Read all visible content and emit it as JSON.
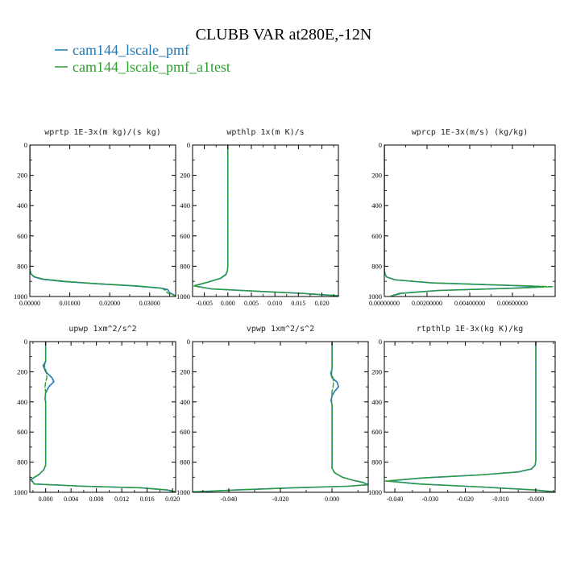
{
  "title": "CLUBB VAR at280E,-12N",
  "legend": [
    {
      "label": "cam144_lscale_pmf",
      "color": "#1f77b4"
    },
    {
      "label": "cam144_lscale_pmf_a1test",
      "color": "#2ca02c"
    }
  ],
  "colors": {
    "series1": "#1f77b4",
    "series2": "#2ca02c"
  },
  "chart_data": [
    {
      "type": "line",
      "title": "wprtp  1E-3x(m kg)/(s kg)",
      "xlim": [
        0,
        0.0365
      ],
      "ylim": [
        1000,
        0
      ],
      "xticks": [
        0,
        0.01,
        0.02,
        0.03
      ],
      "xtick_labels": [
        "0.00000",
        "0.01000",
        "0.02000",
        "0.03000"
      ],
      "yticks": [
        0,
        200,
        400,
        600,
        800,
        1000
      ],
      "ytick_labels": [
        "0",
        "200",
        "400",
        "600",
        "800",
        "1000"
      ],
      "series": [
        {
          "name": "cam144_lscale_pmf",
          "x": [
            0,
            0,
            0.0003,
            0.001,
            0.003,
            0.008,
            0.016,
            0.026,
            0.033,
            0.0345,
            0.035,
            0.0365
          ],
          "y": [
            0,
            820,
            850,
            870,
            885,
            900,
            915,
            930,
            945,
            955,
            975,
            995
          ]
        },
        {
          "name": "cam144_lscale_pmf_a1test",
          "x": [
            0,
            0,
            0.0003,
            0.0012,
            0.0035,
            0.009,
            0.017,
            0.027,
            0.033,
            0.034,
            0.0345,
            0.0365
          ],
          "y": [
            0,
            820,
            850,
            870,
            885,
            900,
            915,
            930,
            945,
            960,
            978,
            995
          ]
        }
      ]
    },
    {
      "type": "line",
      "title": "wpthlp  1x(m K)/s",
      "xlim": [
        -0.0075,
        0.0235
      ],
      "ylim": [
        1000,
        0
      ],
      "xticks": [
        -0.005,
        0,
        0.005,
        0.01,
        0.015,
        0.02
      ],
      "xtick_labels": [
        "-0.005",
        "0.000",
        "0.005",
        "0.010",
        "0.015",
        "0.020"
      ],
      "yticks": [
        0,
        200,
        400,
        600,
        800,
        1000
      ],
      "ytick_labels": [
        "0",
        "200",
        "400",
        "600",
        "800",
        "1000"
      ],
      "series": [
        {
          "name": "cam144_lscale_pmf",
          "x": [
            0,
            0,
            -0.0001,
            -0.0004,
            -0.0015,
            -0.0042,
            -0.0072,
            -0.0035,
            0.006,
            0.016,
            0.0235
          ],
          "y": [
            0,
            800,
            830,
            855,
            880,
            905,
            930,
            950,
            965,
            980,
            995
          ]
        },
        {
          "name": "cam144_lscale_pmf_a1test",
          "x": [
            0,
            0,
            -0.0001,
            -0.0005,
            -0.0016,
            -0.0043,
            -0.0073,
            -0.0034,
            0.0062,
            0.016,
            0.0235
          ],
          "y": [
            0,
            800,
            830,
            855,
            880,
            905,
            930,
            950,
            965,
            980,
            995
          ]
        }
      ]
    },
    {
      "type": "line",
      "title": "wprcp  1E-3x(m/s) (kg/kg)",
      "xlim": [
        0,
        0.008
      ],
      "ylim": [
        1000,
        0
      ],
      "xticks": [
        0,
        0.002,
        0.004,
        0.006
      ],
      "xtick_labels": [
        "0.00000000",
        "0.00200000",
        "0.00400000",
        "0.00600000"
      ],
      "yticks": [
        0,
        200,
        400,
        600,
        800,
        1000
      ],
      "ytick_labels": [
        "0",
        "200",
        "400",
        "600",
        "800",
        "1000"
      ],
      "series": [
        {
          "name": "cam144_lscale_pmf",
          "x": [
            0,
            0,
            3e-05,
            0.0001,
            0.0005,
            0.0022,
            0.0055,
            0.0075,
            0.006,
            0.0025,
            0.0007,
            0.0003
          ],
          "y": [
            0,
            820,
            850,
            870,
            890,
            910,
            925,
            935,
            945,
            960,
            980,
            998
          ]
        },
        {
          "name": "cam144_lscale_pmf_a1test",
          "x": [
            0,
            0,
            3e-05,
            0.0001,
            0.0005,
            0.0023,
            0.0057,
            0.0079,
            0.0062,
            0.0026,
            0.0008,
            0.0003
          ],
          "y": [
            0,
            820,
            850,
            870,
            890,
            910,
            925,
            935,
            945,
            960,
            980,
            998
          ]
        }
      ]
    },
    {
      "type": "line",
      "title": "upwp  1xm^2/s^2",
      "xlim": [
        -0.0025,
        0.0205
      ],
      "ylim": [
        1000,
        0
      ],
      "xticks": [
        0,
        0.004,
        0.008,
        0.012,
        0.016,
        0.02
      ],
      "xtick_labels": [
        "0.000",
        "0.004",
        "0.008",
        "0.012",
        "0.016",
        "0.020"
      ],
      "yticks": [
        0,
        200,
        400,
        600,
        800,
        1000
      ],
      "ytick_labels": [
        "0",
        "200",
        "400",
        "600",
        "800",
        "1000"
      ],
      "series": [
        {
          "name": "cam144_lscale_pmf",
          "x": [
            0,
            0,
            -0.0004,
            0,
            0.001,
            0.0013,
            0.0005,
            0,
            -0.0001,
            0,
            0,
            -0.0003,
            -0.001,
            -0.0023,
            -0.0018,
            0.006,
            0.015,
            0.0192,
            0.0205
          ],
          "y": [
            0,
            130,
            160,
            200,
            240,
            265,
            300,
            340,
            380,
            400,
            820,
            850,
            880,
            915,
            945,
            960,
            970,
            985,
            998
          ]
        },
        {
          "name": "cam144_lscale_pmf_a1test",
          "x": [
            0,
            0,
            -0.0002,
            0.0001,
            0.0002,
            0,
            -0.0001,
            0,
            -0.0001,
            0,
            0,
            -0.0003,
            -0.001,
            -0.0024,
            -0.0018,
            0.006,
            0.015,
            0.0195,
            0.0205
          ],
          "y": [
            0,
            130,
            160,
            200,
            240,
            265,
            300,
            340,
            380,
            400,
            820,
            850,
            880,
            915,
            945,
            960,
            970,
            985,
            998
          ]
        }
      ]
    },
    {
      "type": "line",
      "title": "vpwp  1xm^2/s^2",
      "xlim": [
        -0.054,
        0.014
      ],
      "ylim": [
        1000,
        0
      ],
      "xticks": [
        -0.04,
        -0.02,
        0
      ],
      "xtick_labels": [
        "-0.040",
        "-0.020",
        "0.000"
      ],
      "yticks": [
        0,
        200,
        400,
        600,
        800,
        1000
      ],
      "ytick_labels": [
        "0",
        "200",
        "400",
        "600",
        "800",
        "1000"
      ],
      "series": [
        {
          "name": "cam144_lscale_pmf",
          "x": [
            0,
            0,
            -0.0005,
            0,
            0.002,
            0.0025,
            0.001,
            0,
            -0.0004,
            0,
            0,
            0.001,
            0.004,
            0.008,
            0.012,
            0.014,
            0.006,
            -0.015,
            -0.038,
            -0.054
          ],
          "y": [
            0,
            180,
            210,
            240,
            270,
            300,
            330,
            360,
            390,
            420,
            840,
            870,
            900,
            920,
            935,
            950,
            960,
            970,
            985,
            998
          ]
        },
        {
          "name": "cam144_lscale_pmf_a1test",
          "x": [
            0,
            0,
            -0.0002,
            0.0003,
            0.0006,
            0.0004,
            0,
            -0.0001,
            -0.0002,
            0,
            0,
            0.001,
            0.004,
            0.008,
            0.012,
            0.014,
            0.006,
            -0.015,
            -0.038,
            -0.054
          ],
          "y": [
            0,
            180,
            210,
            240,
            270,
            300,
            330,
            360,
            390,
            420,
            840,
            870,
            900,
            920,
            935,
            950,
            960,
            970,
            985,
            998
          ]
        }
      ]
    },
    {
      "type": "line",
      "title": "rtpthlp  1E-3x(kg K)/kg",
      "xlim": [
        -0.043,
        0.0055
      ],
      "ylim": [
        1000,
        0
      ],
      "xticks": [
        -0.04,
        -0.03,
        -0.02,
        -0.01,
        0
      ],
      "xtick_labels": [
        "-0.040",
        "-0.030",
        "-0.020",
        "-0.010",
        "-0.000"
      ],
      "yticks": [
        0,
        200,
        400,
        600,
        800,
        1000
      ],
      "ytick_labels": [
        "0",
        "200",
        "400",
        "600",
        "800",
        "1000"
      ],
      "series": [
        {
          "name": "cam144_lscale_pmf",
          "x": [
            0,
            0,
            -0.0002,
            -0.0012,
            -0.005,
            -0.016,
            -0.032,
            -0.042,
            -0.033,
            -0.015,
            0,
            0.0055
          ],
          "y": [
            0,
            790,
            820,
            845,
            865,
            885,
            905,
            925,
            945,
            965,
            985,
            998
          ]
        },
        {
          "name": "cam144_lscale_pmf_a1test",
          "x": [
            0,
            0,
            -0.0002,
            -0.0013,
            -0.0052,
            -0.0165,
            -0.0325,
            -0.0428,
            -0.0335,
            -0.015,
            0,
            0.0055
          ],
          "y": [
            0,
            790,
            820,
            845,
            865,
            885,
            905,
            925,
            945,
            965,
            985,
            998
          ]
        }
      ]
    }
  ]
}
